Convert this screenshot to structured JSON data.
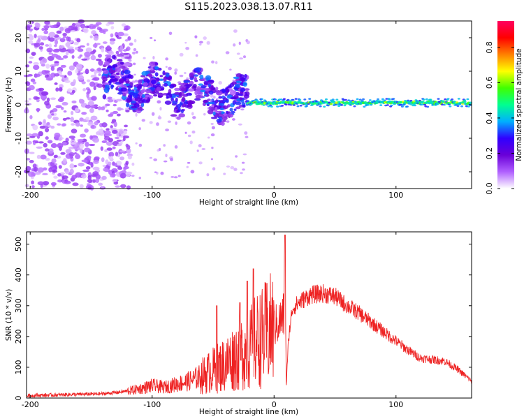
{
  "title": "S115.2023.038.13.07.R11",
  "chart_data": [
    {
      "type": "heatmap",
      "xlabel": "Height of straight line (km)",
      "ylabel": "Frequency (Hz)",
      "xlim": [
        -203,
        162
      ],
      "ylim": [
        -25,
        25
      ],
      "xticks": [
        -200,
        -100,
        0,
        100
      ],
      "yticks": [
        20,
        10,
        0,
        -10,
        -20
      ],
      "colorbar": {
        "label": "Normalized spectral amplitude",
        "range": [
          0,
          0.95
        ],
        "ticks": [
          0.0,
          0.2,
          0.4,
          0.6,
          0.8
        ],
        "colormap": [
          "#ffffff",
          "#b060ff",
          "#6a00d8",
          "#3000ff",
          "#00b0ff",
          "#00ff90",
          "#40ff00",
          "#ffff00",
          "#ff8000",
          "#ff0000",
          "#ff0060"
        ]
      },
      "features": [
        {
          "x_range": [
            -203,
            -120
          ],
          "freq_range": [
            -25,
            25
          ],
          "amplitude": 0.05,
          "note_type": "noise"
        },
        {
          "x_range": [
            -140,
            -25
          ],
          "freq_center": 3,
          "freq_spread": 6,
          "amplitude": 0.2
        },
        {
          "x_range": [
            -20,
            162
          ],
          "freq_center": 0.5,
          "freq_spread": 1.2,
          "amplitude": 0.5
        }
      ]
    },
    {
      "type": "line",
      "xlabel": "Height of straight line (km)",
      "ylabel": "SNR (10 * v/v)",
      "xlim": [
        -203,
        162
      ],
      "ylim": [
        0,
        540
      ],
      "xticks": [
        -200,
        -100,
        0,
        100
      ],
      "yticks": [
        0,
        100,
        200,
        300,
        400,
        500
      ],
      "color": "#ee2222",
      "series": [
        {
          "x": [
            -203,
            -180,
            -160,
            -140,
            -125,
            -110,
            -100,
            -90,
            -80,
            -70,
            -60,
            -50,
            -40,
            -30,
            -25,
            -20,
            -15,
            -10,
            -5,
            0,
            5,
            8,
            9,
            10,
            12,
            15,
            20,
            30,
            40,
            50,
            60,
            70,
            80,
            90,
            100,
            110,
            120,
            130,
            140,
            150,
            162
          ],
          "y": [
            8,
            10,
            12,
            14,
            20,
            30,
            40,
            35,
            45,
            55,
            70,
            90,
            110,
            140,
            150,
            160,
            185,
            195,
            215,
            230,
            250,
            270,
            530,
            40,
            200,
            290,
            310,
            335,
            340,
            330,
            300,
            275,
            245,
            215,
            185,
            155,
            130,
            125,
            120,
            95,
            55
          ]
        }
      ],
      "spikes": [
        {
          "x": 9,
          "y": 530
        },
        {
          "x": -17,
          "y": 420
        },
        {
          "x": -22,
          "y": 380
        },
        {
          "x": -28,
          "y": 310
        },
        {
          "x": -47,
          "y": 300
        }
      ]
    }
  ]
}
